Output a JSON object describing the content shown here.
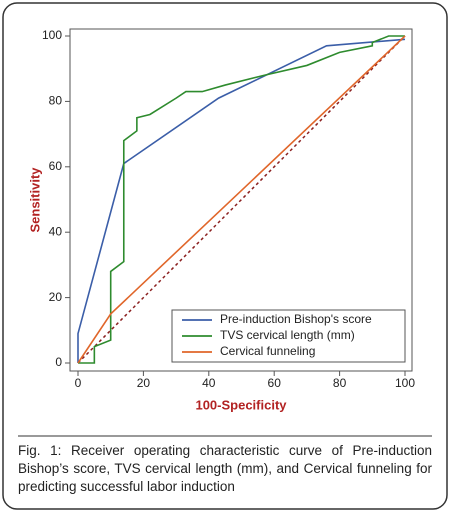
{
  "chart_data": {
    "type": "line",
    "xlabel": "100-Specificity",
    "ylabel": "Sensitivity",
    "xlim": [
      0,
      100
    ],
    "ylim": [
      0,
      100
    ],
    "xticks": [
      0,
      20,
      40,
      60,
      80,
      100
    ],
    "yticks": [
      0,
      20,
      40,
      60,
      80,
      100
    ],
    "legend": "lower right",
    "series": [
      {
        "name": "Pre-induction Bishop's score",
        "color": "#3b5ea8",
        "x": [
          0,
          0,
          14,
          43,
          76,
          100
        ],
        "values": [
          0,
          9,
          61,
          81,
          97,
          99
        ]
      },
      {
        "name": "TVS cervical length (mm)",
        "color": "#2e8b2e",
        "x": [
          0,
          5,
          5,
          10,
          10,
          14,
          14,
          18,
          18,
          22,
          30,
          33,
          38,
          45,
          57,
          70,
          80,
          90,
          90,
          95,
          100
        ],
        "values": [
          0,
          0,
          5,
          7,
          28,
          31,
          68,
          71,
          75,
          76,
          81,
          83,
          83,
          85,
          88,
          91,
          95,
          97,
          98,
          100,
          100
        ]
      },
      {
        "name": "Cervical funneling",
        "color": "#e0662a",
        "x": [
          0,
          10,
          100
        ],
        "values": [
          0,
          15,
          100
        ]
      }
    ]
  },
  "caption": "Fig. 1: Receiver operating characteristic curve of Pre-induction Bishop’s score, TVS cervical length (mm), and Cervical funneling for predicting successful labor induction"
}
